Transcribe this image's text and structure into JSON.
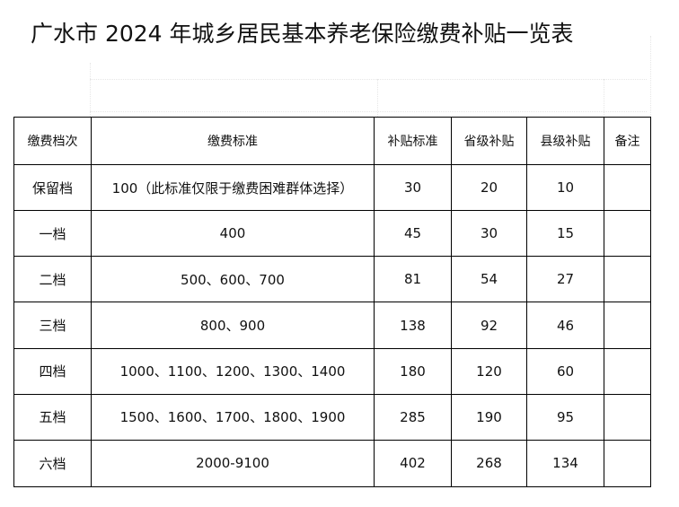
{
  "title": "广水市 2024 年城乡居民基本养老保险缴费补贴一览表",
  "table": {
    "headers": [
      "缴费档次",
      "缴费标准",
      "补贴标准",
      "省级补贴",
      "县级补贴",
      "备注"
    ],
    "rows": [
      {
        "level": "保留档",
        "standard": "100（此标准仅限于缴费困难群体选择）",
        "subsidy": "30",
        "provincial": "20",
        "county": "10",
        "note": ""
      },
      {
        "level": "一档",
        "standard": "400",
        "subsidy": "45",
        "provincial": "30",
        "county": "15",
        "note": ""
      },
      {
        "level": "二档",
        "standard": "500、600、700",
        "subsidy": "81",
        "provincial": "54",
        "county": "27",
        "note": ""
      },
      {
        "level": "三档",
        "standard": "800、900",
        "subsidy": "138",
        "provincial": "92",
        "county": "46",
        "note": ""
      },
      {
        "level": "四档",
        "standard": "1000、1100、1200、1300、1400",
        "subsidy": "180",
        "provincial": "120",
        "county": "60",
        "note": ""
      },
      {
        "level": "五档",
        "standard": "1500、1600、1700、1800、1900",
        "subsidy": "285",
        "provincial": "190",
        "county": "95",
        "note": ""
      },
      {
        "level": "六档",
        "standard": "2000-9100",
        "subsidy": "402",
        "provincial": "268",
        "county": "134",
        "note": ""
      }
    ]
  }
}
